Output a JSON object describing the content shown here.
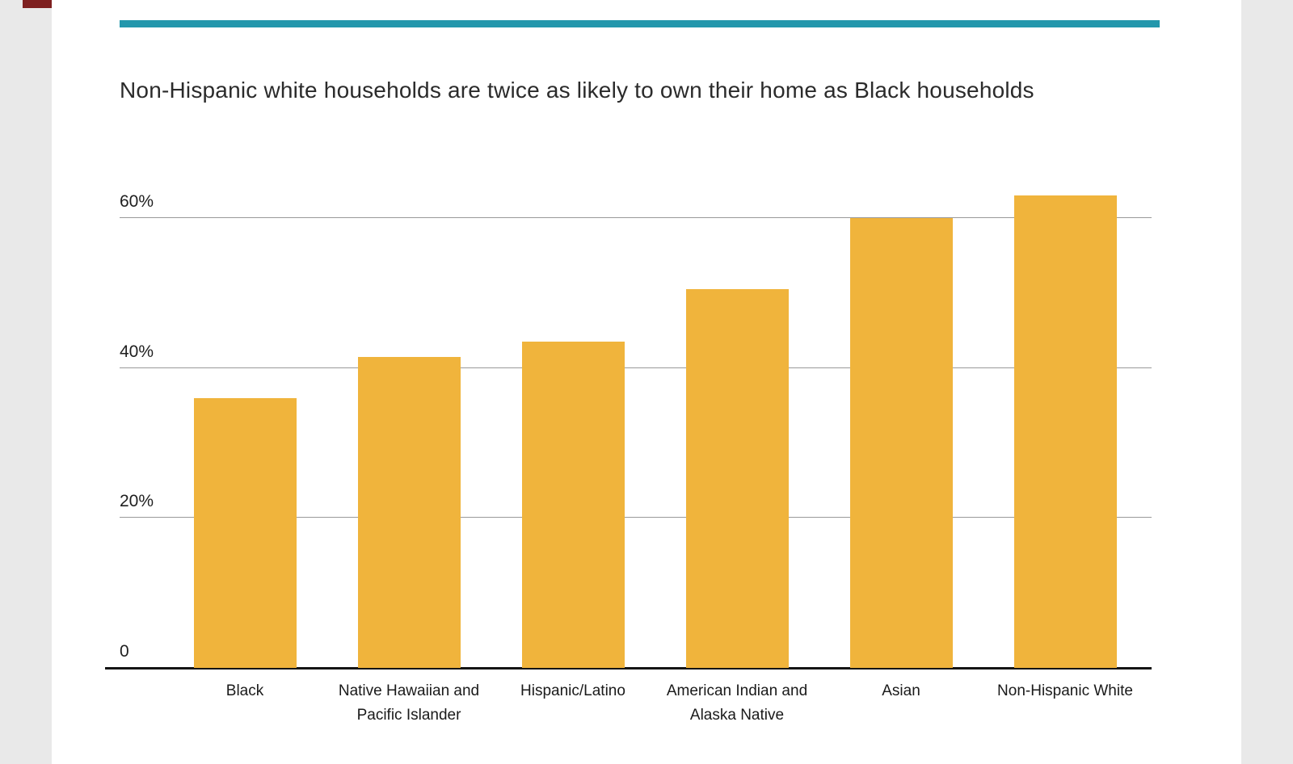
{
  "page": {
    "title": "Non-Hispanic white households are twice as likely to own their home as Black households"
  },
  "colors": {
    "accent_bar": "#2397AC",
    "bar": "#F0B43C",
    "background": "#E9E9E9",
    "card": "#FFFFFF",
    "artifact": "#7E2020"
  },
  "chart_data": {
    "type": "bar",
    "title": "Non-Hispanic white households are twice as likely to own their home as Black households",
    "categories": [
      "Black",
      "Native Hawaiian and Pacific Islander",
      "Hispanic/Latino",
      "American Indian and Alaska Native",
      "Asian",
      "Non-Hispanic White"
    ],
    "values": [
      36,
      41.5,
      43.5,
      50.5,
      60,
      63
    ],
    "xlabel": "",
    "ylabel": "",
    "yticks": [
      0,
      20,
      40,
      60
    ],
    "ytick_labels": [
      "0",
      "20%",
      "40%",
      "60%"
    ],
    "ylim": [
      0,
      66
    ],
    "grid": true,
    "legend": "none",
    "bar_color": "#F0B43C"
  }
}
